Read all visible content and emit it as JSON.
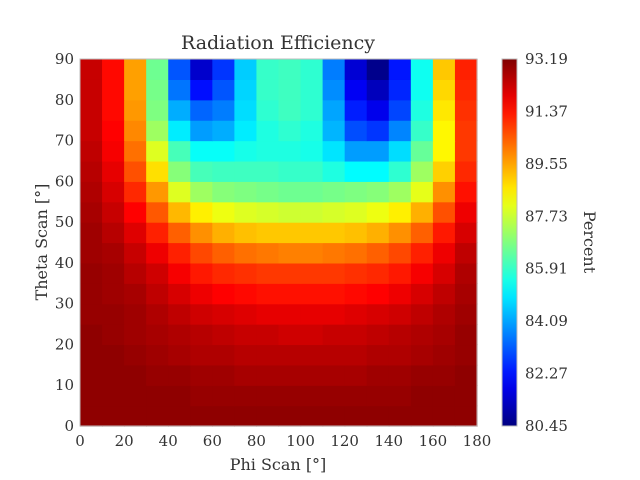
{
  "chart_data": {
    "type": "heatmap",
    "title": "Radiation Efficiency",
    "xlabel": "Phi Scan [°]",
    "ylabel": "Theta Scan [°]",
    "colorbar_label": "Percent",
    "colormap": "jet",
    "xlim": [
      0,
      180
    ],
    "ylim": [
      0,
      90
    ],
    "x_ticks": [
      0,
      20,
      40,
      60,
      80,
      100,
      120,
      140,
      160,
      180
    ],
    "y_ticks": [
      0,
      10,
      20,
      30,
      40,
      50,
      60,
      70,
      80,
      90
    ],
    "vmin": 80.45,
    "vmax": 93.19,
    "colorbar_ticks": [
      "80.45",
      "82.27",
      "84.09",
      "85.91",
      "87.73",
      "89.55",
      "91.37",
      "93.19"
    ],
    "phi_cells": [
      0,
      10,
      20,
      30,
      40,
      50,
      60,
      70,
      80,
      90,
      100,
      110,
      120,
      130,
      140,
      150,
      160,
      170
    ],
    "theta_cells": [
      0,
      5,
      10,
      15,
      20,
      25,
      30,
      35,
      40,
      45,
      50,
      55,
      60,
      65,
      70,
      75,
      80,
      85
    ],
    "cell_width_phi": 10,
    "cell_height_theta": 5,
    "values": [
      [
        93.0,
        93.0,
        93.0,
        93.0,
        93.0,
        93.0,
        93.0,
        93.0,
        93.0,
        93.0,
        93.0,
        93.0,
        93.0,
        93.0,
        93.0,
        93.0,
        93.0,
        93.0
      ],
      [
        93.0,
        93.0,
        93.0,
        93.0,
        93.0,
        92.9,
        92.9,
        92.9,
        92.9,
        92.9,
        92.9,
        92.9,
        92.9,
        92.9,
        92.9,
        93.0,
        93.0,
        93.0
      ],
      [
        93.0,
        93.0,
        93.0,
        92.9,
        92.9,
        92.8,
        92.8,
        92.7,
        92.7,
        92.7,
        92.7,
        92.7,
        92.7,
        92.8,
        92.8,
        92.9,
        92.9,
        93.0
      ],
      [
        93.0,
        93.0,
        92.9,
        92.8,
        92.7,
        92.6,
        92.6,
        92.5,
        92.5,
        92.5,
        92.5,
        92.5,
        92.5,
        92.6,
        92.6,
        92.7,
        92.8,
        92.9
      ],
      [
        93.0,
        92.9,
        92.8,
        92.7,
        92.6,
        92.5,
        92.4,
        92.3,
        92.3,
        92.2,
        92.2,
        92.3,
        92.3,
        92.4,
        92.5,
        92.6,
        92.7,
        92.9
      ],
      [
        92.9,
        92.9,
        92.8,
        92.6,
        92.4,
        92.2,
        92.1,
        92.0,
        91.9,
        91.9,
        91.9,
        91.9,
        92.0,
        92.1,
        92.2,
        92.4,
        92.6,
        92.8
      ],
      [
        92.9,
        92.8,
        92.7,
        92.4,
        92.1,
        91.8,
        91.6,
        91.5,
        91.4,
        91.4,
        91.4,
        91.4,
        91.5,
        91.6,
        91.8,
        92.1,
        92.4,
        92.7
      ],
      [
        92.9,
        92.8,
        92.5,
        92.2,
        91.7,
        91.3,
        91.1,
        91.0,
        90.9,
        90.9,
        90.9,
        90.9,
        91.0,
        91.1,
        91.3,
        91.7,
        92.1,
        92.6
      ],
      [
        92.8,
        92.7,
        92.3,
        91.8,
        91.2,
        90.7,
        90.4,
        90.2,
        90.1,
        90.0,
        90.0,
        90.1,
        90.2,
        90.4,
        90.7,
        91.2,
        91.8,
        92.4
      ],
      [
        92.8,
        92.5,
        92.0,
        91.2,
        90.4,
        89.8,
        89.4,
        89.2,
        89.1,
        89.1,
        89.1,
        89.1,
        89.2,
        89.4,
        89.8,
        90.4,
        91.3,
        92.1
      ],
      [
        92.7,
        92.3,
        91.6,
        90.5,
        89.3,
        88.6,
        88.2,
        88.0,
        87.9,
        87.8,
        87.8,
        87.9,
        88.0,
        88.2,
        88.6,
        89.4,
        90.6,
        91.8
      ],
      [
        92.6,
        92.1,
        91.1,
        89.7,
        88.0,
        87.2,
        86.9,
        86.8,
        86.7,
        86.6,
        86.6,
        86.7,
        86.8,
        86.9,
        87.2,
        88.1,
        89.8,
        91.4
      ],
      [
        92.5,
        91.9,
        90.6,
        88.8,
        86.9,
        86.1,
        86.0,
        86.0,
        86.0,
        85.9,
        85.9,
        85.6,
        85.2,
        85.2,
        85.8,
        87.2,
        89.0,
        91.1
      ],
      [
        92.4,
        91.7,
        90.2,
        88.0,
        86.1,
        85.3,
        85.3,
        85.5,
        85.6,
        85.6,
        85.5,
        84.9,
        84.0,
        84.0,
        84.8,
        86.5,
        88.5,
        90.9
      ],
      [
        92.3,
        91.6,
        89.9,
        87.2,
        85.0,
        84.0,
        84.2,
        85.0,
        85.6,
        85.8,
        85.6,
        84.3,
        83.0,
        82.7,
        83.7,
        85.9,
        88.5,
        90.9
      ],
      [
        92.3,
        91.5,
        89.7,
        86.8,
        84.2,
        83.3,
        83.6,
        84.8,
        85.8,
        86.0,
        85.8,
        84.1,
        82.4,
        81.8,
        82.9,
        85.6,
        88.7,
        91.0
      ],
      [
        92.3,
        91.5,
        89.6,
        86.7,
        83.5,
        82.2,
        83.1,
        84.7,
        85.9,
        86.0,
        85.8,
        83.8,
        81.9,
        81.2,
        82.5,
        85.4,
        88.9,
        91.1
      ],
      [
        92.3,
        91.5,
        89.6,
        86.6,
        83.1,
        81.4,
        82.7,
        84.6,
        85.9,
        86.0,
        85.8,
        83.6,
        81.5,
        80.6,
        82.3,
        85.4,
        89.1,
        91.2
      ]
    ]
  }
}
